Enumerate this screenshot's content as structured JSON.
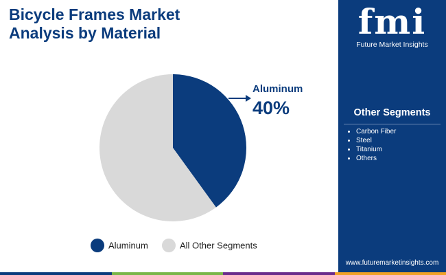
{
  "chart_data": {
    "type": "pie",
    "title": "Bicycle Frames Market Analysis by Material",
    "categories": [
      "Aluminum",
      "All Other Segments"
    ],
    "values": [
      40,
      60
    ],
    "value_labels": [
      "40%",
      null
    ],
    "colors": [
      "#0b3c7d",
      "#d9d9d9"
    ],
    "legend": "bottom"
  },
  "sidebar": {
    "heading": "Other Segments",
    "items": [
      "Carbon Fiber",
      "Steel",
      "Titanium",
      "Others"
    ]
  },
  "logo": {
    "letters": "fmi",
    "name": "Future Market Insights"
  },
  "url": "www.futuremarketinsights.com"
}
